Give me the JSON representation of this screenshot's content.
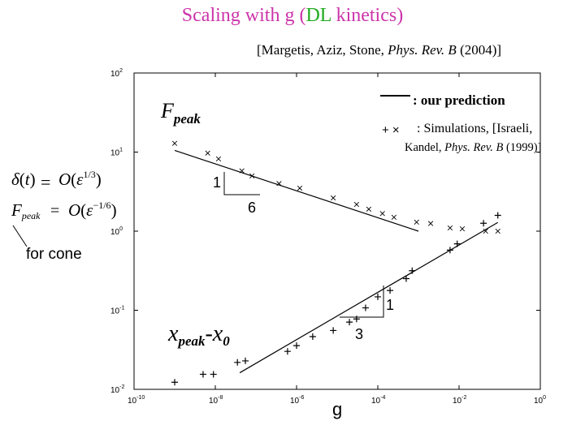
{
  "slide": {
    "title_prefix": "Scaling with g (",
    "title_dl": "DL",
    "title_suffix": " kinetics)",
    "title_color": "#cc33aa",
    "dl_color": "#22aa22",
    "citation_prefix": "[Margetis, Aziz, Stone, ",
    "citation_journal": "Phys. Rev. B",
    "citation_suffix": " (2004)]",
    "legend_prediction": ": our prediction",
    "legend_sim_marks": "+ ×",
    "legend_sim": ": Simulations, [",
    "legend_sim_author": "Israeli,",
    "legend_sim2_prefix": "Kandel, ",
    "legend_sim2_journal": "Phys. Rev. B",
    "legend_sim2_suffix": " (1999)]",
    "formula_delta": "δ(t)= O(ε^{1/3})",
    "formula_fpeak": "F_peak = O(ε^{-1/6})",
    "for_cone": "for cone"
  },
  "chart_data": {
    "type": "scatter",
    "xscale": "log",
    "yscale": "log",
    "xlim": [
      1e-10,
      1
    ],
    "ylim": [
      0.01,
      100
    ],
    "xlabel": "g",
    "ylabel": "",
    "x_ticks": [
      {
        "base": "10",
        "exp": "-10",
        "value": 1e-10
      },
      {
        "base": "10",
        "exp": "-8",
        "value": 1e-08
      },
      {
        "base": "10",
        "exp": "-6",
        "value": 1e-06
      },
      {
        "base": "10",
        "exp": "-4",
        "value": 0.0001
      },
      {
        "base": "10",
        "exp": "-2",
        "value": 0.01
      },
      {
        "base": "10",
        "exp": "0",
        "value": 1
      }
    ],
    "y_ticks": [
      {
        "base": "10",
        "exp": "2",
        "value": 100
      },
      {
        "base": "10",
        "exp": "1",
        "value": 10
      },
      {
        "base": "10",
        "exp": "0",
        "value": 1
      },
      {
        "base": "10",
        "exp": "-1",
        "value": 0.1
      },
      {
        "base": "10",
        "exp": "-2",
        "value": 0.01
      }
    ],
    "series": [
      {
        "name": "F_peak",
        "marker": "x",
        "points": [
          [
            1e-09,
            12.9
          ],
          [
            6.5e-09,
            9.7
          ],
          [
            1.2e-08,
            8.2
          ],
          [
            4.5e-08,
            5.8
          ],
          [
            8e-08,
            5.0
          ],
          [
            3.7e-07,
            4.0
          ],
          [
            1.2e-06,
            3.5
          ],
          [
            8e-06,
            2.63
          ],
          [
            3e-05,
            2.18
          ],
          [
            6e-05,
            1.9
          ],
          [
            0.00013,
            1.67
          ],
          [
            0.00025,
            1.5
          ],
          [
            0.0009,
            1.3
          ],
          [
            0.002,
            1.25
          ],
          [
            0.006,
            1.1
          ],
          [
            0.012,
            1.07
          ],
          [
            0.045,
            1.0
          ],
          [
            0.09,
            1.0
          ]
        ]
      },
      {
        "name": "x_peak - x_0",
        "marker": "+",
        "points": [
          [
            1e-09,
            0.0123
          ],
          [
            5e-09,
            0.0155
          ],
          [
            9e-09,
            0.0155
          ],
          [
            3.5e-08,
            0.0219
          ],
          [
            5.5e-08,
            0.0229
          ],
          [
            6e-07,
            0.0302
          ],
          [
            1e-06,
            0.0357
          ],
          [
            2.5e-06,
            0.0464
          ],
          [
            8e-06,
            0.0555
          ],
          [
            2e-05,
            0.0708
          ],
          [
            3e-05,
            0.0776
          ],
          [
            5e-05,
            0.1072
          ],
          [
            0.0001,
            0.1479
          ],
          [
            0.0002,
            0.1778
          ],
          [
            0.0005,
            0.2512
          ],
          [
            0.0007,
            0.3162
          ],
          [
            0.006,
            0.5754
          ],
          [
            0.009,
            0.6918
          ],
          [
            0.04,
            1.259
          ],
          [
            0.09,
            1.585
          ]
        ]
      }
    ],
    "fit_lines": [
      {
        "name": "F_peak prediction",
        "from": [
          1e-09,
          10.5
        ],
        "to": [
          0.001,
          1.0
        ]
      },
      {
        "name": "x_peak prediction",
        "from": [
          4e-08,
          0.0162
        ],
        "to": [
          0.09,
          1.29
        ]
      }
    ],
    "annotations": {
      "fpeak_label_main": "F",
      "fpeak_label_sub": "peak",
      "xpeak_label_main": "x",
      "xpeak_label_sub1": "peak",
      "xpeak_label_dash": "-x",
      "xpeak_label_sub2": "0",
      "slope1_rise": "1",
      "slope1_run": "6",
      "slope2_rise": "1",
      "slope2_run": "3"
    }
  }
}
